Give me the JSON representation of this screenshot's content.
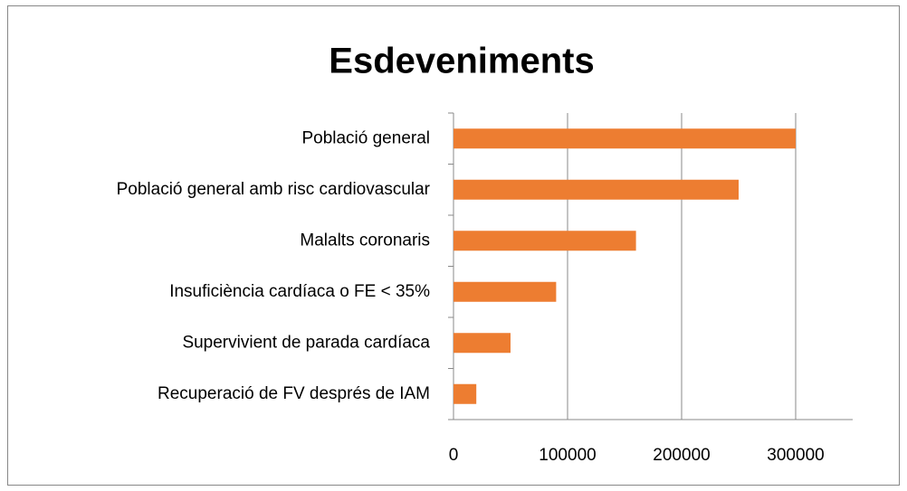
{
  "chart_data": {
    "type": "bar",
    "orientation": "horizontal",
    "title": "Esdeveniments",
    "categories": [
      "Població general",
      "Població general amb risc cardiovascular",
      "Malalts coronaris",
      "Insuficiència cardíaca o FE < 35%",
      "Supervivient de parada cardíaca",
      "Recuperació de FV després de IAM"
    ],
    "values": [
      300000,
      250000,
      160000,
      90000,
      50000,
      20000
    ],
    "color": "#ed7d31",
    "xlim": [
      0,
      350000
    ],
    "xticks": [
      0,
      100000,
      200000,
      300000
    ],
    "grid": true
  }
}
